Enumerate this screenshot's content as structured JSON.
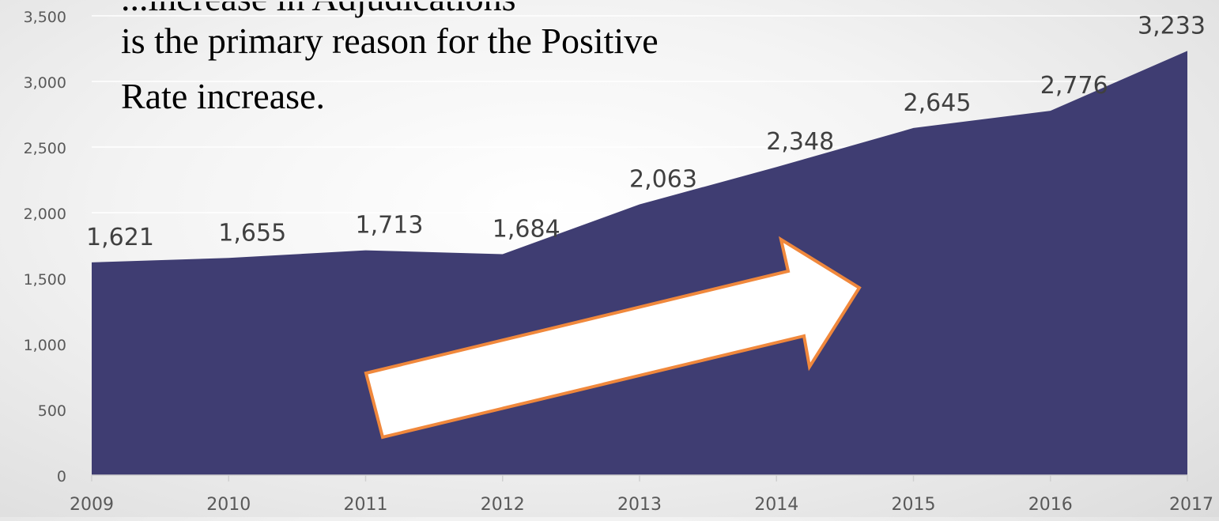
{
  "chart_data": {
    "type": "area",
    "x": [
      "2009",
      "2010",
      "2011",
      "2012",
      "2013",
      "2014",
      "2015",
      "2016",
      "2017"
    ],
    "values": [
      1621,
      1655,
      1713,
      1684,
      2063,
      2348,
      2645,
      2776,
      3233
    ],
    "data_labels": [
      "1,621",
      "1,655",
      "1,713",
      "1,684",
      "2,063",
      "2,348",
      "2,645",
      "2,776",
      "3,233"
    ],
    "y_ticks": [
      {
        "value": 0,
        "label": "0"
      },
      {
        "value": 500,
        "label": "500"
      },
      {
        "value": 1000,
        "label": "1,000"
      },
      {
        "value": 1500,
        "label": "1,500"
      },
      {
        "value": 2000,
        "label": "2,000"
      },
      {
        "value": 2500,
        "label": "2,500"
      },
      {
        "value": 3000,
        "label": "3,000"
      },
      {
        "value": 3500,
        "label": "3,500"
      }
    ],
    "ylim": [
      0,
      3500
    ],
    "grid": true,
    "colors": {
      "area": "#3f3d72",
      "arrow_fill": "#ffffff",
      "arrow_outline": "#f0883c",
      "gridline": "#ffffff",
      "axis_line": "#d0d0d0"
    }
  },
  "annotation": {
    "line1": "...increase in Adjudications",
    "line2": "is the primary reason for the Positive",
    "line3": "Rate increase."
  },
  "arrow": {
    "icon": "up-right-arrow-icon",
    "direction": "up-right"
  }
}
